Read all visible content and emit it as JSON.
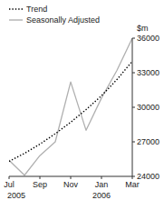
{
  "chart_data": {
    "type": "line",
    "ylabel": "$m",
    "categories": [
      "Jul",
      null,
      "Sep",
      null,
      "Nov",
      null,
      "Jan",
      null,
      "Mar"
    ],
    "series": [
      {
        "name": "Seasonally Adjusted",
        "color": "#b0b0b0",
        "line_style": "solid",
        "values": [
          25400,
          24100,
          25800,
          27000,
          32200,
          28000,
          30800,
          33200,
          36000
        ]
      },
      {
        "name": "Trend",
        "color": "#000000",
        "line_style": "dotted",
        "values": [
          25300,
          26000,
          26800,
          27700,
          28700,
          29800,
          31000,
          32400,
          34000
        ]
      }
    ],
    "ylim": [
      24000,
      36000
    ],
    "yticks": [
      24000,
      27000,
      30000,
      33000,
      36000
    ],
    "annotations": [
      {
        "text": "2005",
        "x": "Jul"
      },
      {
        "text": "2006",
        "x": "Jan"
      }
    ],
    "legend": "upper left",
    "grid": false
  }
}
